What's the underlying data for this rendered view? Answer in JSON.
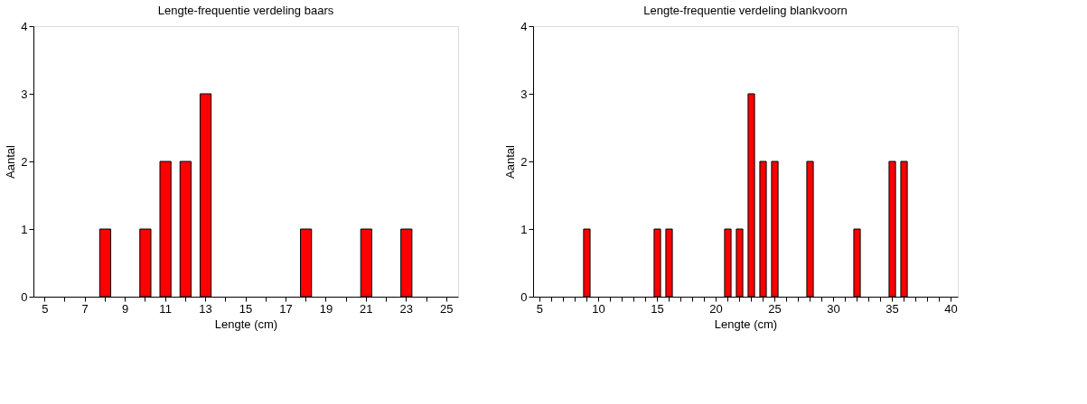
{
  "chart_data": [
    {
      "type": "bar",
      "title": "Lengte-frequentie verdeling baars",
      "xlabel": "Lengte (cm)",
      "ylabel": "Aantal",
      "categories": [
        "5",
        null,
        "7",
        null,
        "9",
        null,
        "11",
        null,
        "13",
        null,
        "15",
        null,
        "17",
        null,
        "19",
        null,
        "21",
        null,
        "23",
        null,
        "25"
      ],
      "series": [
        {
          "color": "#ff0000",
          "values": [
            0,
            0,
            0,
            1,
            0,
            1,
            2,
            2,
            3,
            0,
            0,
            0,
            0,
            1,
            0,
            0,
            1,
            0,
            1,
            0,
            0
          ]
        }
      ],
      "ylim": [
        0,
        4
      ],
      "yticks": [
        0,
        1,
        2,
        3,
        4
      ],
      "grid": false,
      "legend": false
    },
    {
      "type": "bar",
      "title": "Lengte-frequentie verdeling blankvoorn",
      "xlabel": "Lengte (cm)",
      "ylabel": "Aantal",
      "categories": [
        "5",
        null,
        null,
        null,
        null,
        "10",
        null,
        null,
        null,
        null,
        "15",
        null,
        null,
        null,
        null,
        "20",
        null,
        null,
        null,
        null,
        "25",
        null,
        null,
        null,
        null,
        "30",
        null,
        null,
        null,
        null,
        "35",
        null,
        null,
        null,
        null,
        "40"
      ],
      "series": [
        {
          "color": "#ff0000",
          "values": [
            0,
            0,
            0,
            0,
            1,
            0,
            0,
            0,
            0,
            0,
            1,
            1,
            0,
            0,
            0,
            0,
            1,
            1,
            3,
            2,
            2,
            0,
            0,
            2,
            0,
            0,
            0,
            1,
            0,
            0,
            2,
            2,
            0,
            0,
            0,
            0
          ]
        }
      ],
      "ylim": [
        0,
        4
      ],
      "yticks": [
        0,
        1,
        2,
        3,
        4
      ],
      "grid": false,
      "legend": false
    }
  ]
}
